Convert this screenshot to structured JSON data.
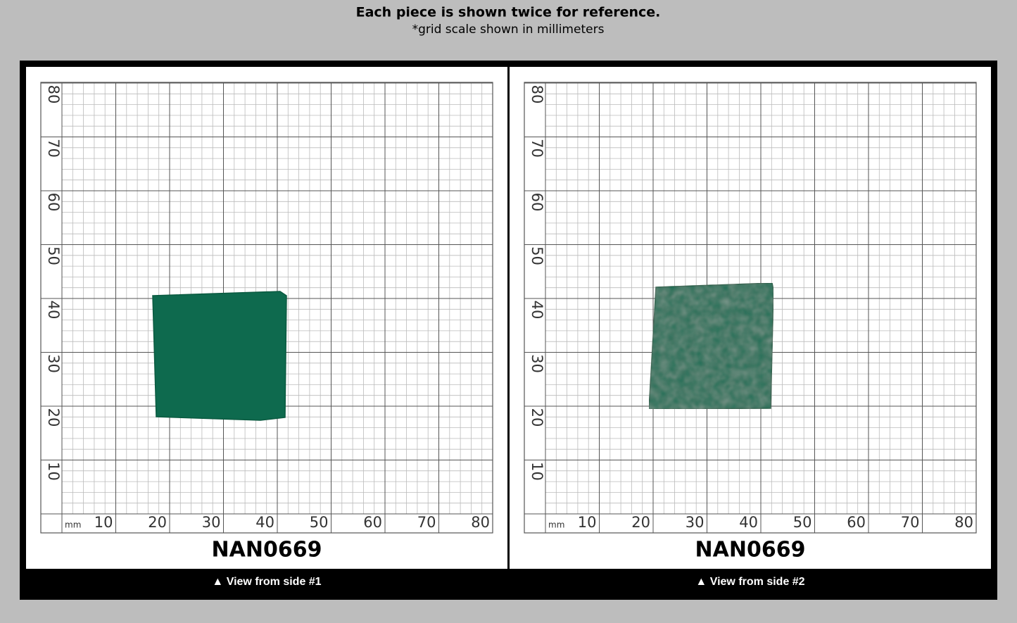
{
  "header": {
    "title": "Each piece is shown twice for reference.",
    "subtitle": "*grid scale shown in millimeters"
  },
  "panels": [
    {
      "unit": "mm",
      "x_labels": [
        10,
        20,
        30,
        40,
        50,
        60,
        70,
        80
      ],
      "y_labels": [
        10,
        20,
        30,
        40,
        50,
        60,
        70,
        80
      ],
      "label": "NAN0669",
      "caption": "▲ View from side #1"
    },
    {
      "unit": "mm",
      "x_labels": [
        10,
        20,
        30,
        40,
        50,
        60,
        70,
        80
      ],
      "y_labels": [
        10,
        20,
        30,
        40,
        50,
        60,
        70,
        80
      ],
      "label": "NAN0669",
      "caption": "▲ View from side #2"
    }
  ]
}
